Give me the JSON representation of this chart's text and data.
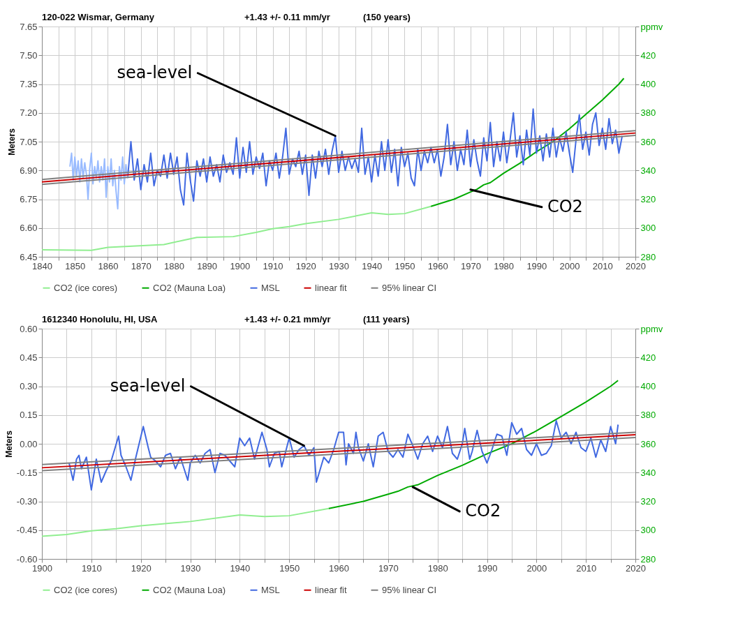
{
  "chart_data": [
    {
      "type": "line",
      "title": "120-022 Wismar, Germany",
      "subtitle": "+1.43 +/- 0.11 mm/yr",
      "ylabel": "Meters",
      "grid": true,
      "legend": "bottom",
      "annotations": [
        "(150 years)",
        {
          "text": "sea-level",
          "x": 1929,
          "y": 7.08
        },
        {
          "text": "CO2",
          "x": 1970,
          "y": 6.8
        }
      ],
      "xlim": [
        1840,
        2020
      ],
      "xticks": [
        1840,
        {
          "value": 1845,
          "label": null
        },
        1850,
        {
          "value": 1855,
          "label": null
        },
        1860,
        {
          "value": 1865,
          "label": null
        },
        1870,
        {
          "value": 1875,
          "label": null
        },
        1880,
        {
          "value": 1885,
          "label": null
        },
        1890,
        {
          "value": 1895,
          "label": null
        },
        1900,
        {
          "value": 1905,
          "label": null
        },
        1910,
        {
          "value": 1915,
          "label": null
        },
        1920,
        {
          "value": 1925,
          "label": null
        },
        1930,
        {
          "value": 1935,
          "label": null
        },
        1940,
        {
          "value": 1945,
          "label": null
        },
        1950,
        {
          "value": 1955,
          "label": null
        },
        1960,
        {
          "value": 1965,
          "label": null
        },
        1970,
        {
          "value": 1975,
          "label": null
        },
        1980,
        {
          "value": 1985,
          "label": null
        },
        1990,
        {
          "value": 1995,
          "label": null
        },
        2000,
        {
          "value": 2005,
          "label": null
        },
        2010,
        {
          "value": 2015,
          "label": null
        },
        2020
      ],
      "ylim": [
        6.45,
        7.65
      ],
      "yticks": [
        6.45,
        {
          "value": 6.6,
          "label": "6.60"
        },
        6.75,
        {
          "value": 6.9,
          "label": "6.90"
        },
        7.05,
        {
          "value": 7.2,
          "label": "7.20"
        },
        7.35,
        {
          "value": 7.5,
          "label": "7.50"
        },
        7.65
      ],
      "y2lim": [
        280,
        440
      ],
      "y2ticks": [
        280,
        300,
        320,
        340,
        360,
        380,
        400,
        420,
        {
          "value": 440,
          "label": "ppmv"
        }
      ],
      "series": [
        {
          "name": "CO2 (ice cores)",
          "axis": "y2",
          "color": "#90ee90",
          "x": [
            1840,
            1855,
            1860,
            1877,
            1883,
            1887,
            1898,
            1905,
            1910,
            1915,
            1920,
            1930,
            1940,
            1945,
            1950,
            1958
          ],
          "values": [
            284.8,
            284.5,
            286.5,
            288.5,
            291.5,
            293.5,
            294,
            297,
            299.5,
            301,
            303,
            306,
            310.5,
            309.5,
            310,
            315
          ]
        },
        {
          "name": "CO2 (Mauna Loa)",
          "axis": "y2",
          "color": "#00aa00",
          "x": [
            1958,
            1965,
            1970,
            1972,
            1974,
            1976,
            1980,
            1985,
            1990,
            1995,
            2000,
            2005,
            2010,
            2015,
            2016.5
          ],
          "values": [
            315,
            320,
            325,
            327,
            330,
            331.5,
            338,
            345,
            353,
            360,
            369,
            379,
            389,
            400,
            404
          ]
        },
        {
          "name": "MSL",
          "color": "#4169e1",
          "x": [
            1866,
            1867,
            1868,
            1869,
            1870,
            1871,
            1872,
            1873,
            1874,
            1875,
            1876,
            1877,
            1878,
            1879,
            1880,
            1881,
            1882,
            1883,
            1884,
            1885,
            1886,
            1887,
            1888,
            1889,
            1890,
            1891,
            1892,
            1893,
            1894,
            1895,
            1896,
            1897,
            1898,
            1899,
            1900,
            1901,
            1902,
            1903,
            1904,
            1905,
            1906,
            1907,
            1908,
            1909,
            1910,
            1911,
            1912,
            1913,
            1914,
            1915,
            1916,
            1917,
            1918,
            1919,
            1920,
            1921,
            1922,
            1923,
            1924,
            1925,
            1926,
            1927,
            1928,
            1929,
            1930,
            1931,
            1932,
            1933,
            1934,
            1935,
            1936,
            1937,
            1938,
            1939,
            1940,
            1941,
            1942,
            1943,
            1944,
            1945,
            1946,
            1947,
            1948,
            1949,
            1950,
            1951,
            1952,
            1953,
            1954,
            1955,
            1956,
            1957,
            1958,
            1959,
            1960,
            1961,
            1962,
            1963,
            1964,
            1965,
            1966,
            1967,
            1968,
            1969,
            1970,
            1971,
            1972,
            1973,
            1974,
            1975,
            1976,
            1977,
            1978,
            1979,
            1980,
            1981,
            1982,
            1983,
            1984,
            1985,
            1986,
            1987,
            1988,
            1989,
            1990,
            1991,
            1992,
            1993,
            1994,
            1995,
            1996,
            1997,
            1998,
            1999,
            2000,
            2001,
            2002,
            2003,
            2004,
            2005,
            2006,
            2007,
            2008,
            2009,
            2010,
            2011,
            2012,
            2013,
            2014,
            2015,
            2016
          ],
          "values": [
            6.86,
            7.05,
            6.85,
            6.96,
            6.8,
            6.93,
            6.84,
            6.99,
            6.82,
            6.9,
            6.87,
            6.98,
            6.86,
            6.99,
            6.88,
            6.97,
            6.8,
            6.72,
            6.99,
            6.85,
            6.74,
            6.95,
            6.87,
            6.96,
            6.84,
            6.97,
            6.87,
            6.93,
            6.84,
            6.98,
            6.89,
            6.94,
            6.88,
            7.07,
            6.86,
            7.02,
            6.89,
            7.05,
            6.88,
            6.97,
            6.91,
            6.99,
            6.82,
            6.95,
            6.9,
            6.99,
            6.86,
            6.97,
            7.12,
            6.88,
            6.96,
            6.92,
            7.0,
            6.88,
            6.98,
            6.77,
            6.98,
            6.86,
            7.0,
            6.92,
            7.01,
            6.88,
            7.0,
            7.08,
            6.89,
            7.0,
            6.9,
            6.97,
            6.91,
            6.96,
            6.89,
            7.12,
            6.88,
            6.97,
            6.84,
            6.98,
            6.87,
            7.05,
            6.9,
            7.06,
            6.89,
            7.01,
            6.82,
            7.02,
            6.92,
            6.99,
            6.86,
            6.82,
            7.01,
            6.9,
            7.0,
            6.94,
            7.02,
            6.94,
            7.01,
            6.87,
            6.97,
            7.14,
            6.93,
            7.05,
            6.9,
            7.01,
            6.93,
            7.11,
            6.92,
            7.06,
            6.95,
            6.87,
            7.07,
            6.95,
            7.15,
            6.92,
            7.05,
            6.95,
            7.1,
            6.94,
            7.06,
            7.2,
            6.97,
            7.08,
            6.93,
            7.11,
            6.98,
            7.22,
            6.99,
            7.08,
            6.95,
            7.09,
            6.97,
            7.12,
            6.97,
            7.07,
            7.0,
            7.1,
            6.99,
            6.89,
            7.06,
            7.19,
            7.01,
            7.1,
            6.98,
            7.14,
            7.2,
            7.03,
            7.12,
            7.01,
            7.17,
            7.04,
            7.11,
            6.99,
            7.08
          ]
        },
        {
          "color": "#99bbff",
          "x": [
            1848.5,
            1849,
            1849.5,
            1850,
            1850.5,
            1851,
            1851.5,
            1852,
            1852.5,
            1853,
            1853.5,
            1854,
            1854.5,
            1855,
            1855.5,
            1856,
            1856.5,
            1857,
            1857.5,
            1858,
            1858.5,
            1859,
            1859.5,
            1860,
            1860.5,
            1861,
            1861.5,
            1862,
            1862.5,
            1863,
            1863.5,
            1864,
            1864.5,
            1865,
            1865.5,
            1866
          ],
          "values": [
            6.92,
            6.99,
            6.85,
            6.97,
            6.87,
            6.95,
            6.84,
            6.96,
            6.86,
            6.94,
            6.88,
            6.75,
            6.91,
            6.99,
            6.83,
            6.92,
            6.86,
            6.95,
            6.84,
            6.92,
            6.85,
            6.96,
            6.76,
            6.92,
            6.84,
            6.96,
            6.82,
            6.9,
            6.79,
            6.7,
            6.92,
            6.85,
            6.97,
            6.83,
            6.93,
            6.86
          ]
        },
        {
          "name": "linear fit",
          "color": "#cc0000",
          "x": [
            1840,
            2020
          ],
          "values": [
            6.84,
            7.095
          ]
        },
        {
          "name": "95% linear CI",
          "color": "#808080",
          "x": [
            1840,
            2020
          ],
          "values": [
            6.853,
            7.107
          ]
        },
        {
          "color": "#808080",
          "x": [
            1840,
            2020
          ],
          "values": [
            6.827,
            7.083
          ]
        }
      ]
    },
    {
      "type": "line",
      "title": "1612340 Honolulu, HI, USA",
      "subtitle": "+1.43 +/- 0.21 mm/yr",
      "ylabel": "Meters",
      "grid": true,
      "legend": "bottom",
      "annotations": [
        "(111 years)",
        {
          "text": "sea-level",
          "x": 1953,
          "y": -0.01
        },
        {
          "text": "CO2",
          "x": 1975,
          "y": -0.225
        }
      ],
      "xlim": [
        1900,
        2020
      ],
      "xticks": [
        1900,
        {
          "value": 1905,
          "label": null
        },
        1910,
        {
          "value": 1915,
          "label": null
        },
        1920,
        {
          "value": 1925,
          "label": null
        },
        1930,
        {
          "value": 1935,
          "label": null
        },
        1940,
        {
          "value": 1945,
          "label": null
        },
        1950,
        {
          "value": 1955,
          "label": null
        },
        1960,
        {
          "value": 1965,
          "label": null
        },
        1970,
        {
          "value": 1975,
          "label": null
        },
        1980,
        {
          "value": 1985,
          "label": null
        },
        1990,
        {
          "value": 1995,
          "label": null
        },
        2000,
        {
          "value": 2005,
          "label": null
        },
        2010,
        {
          "value": 2015,
          "label": null
        },
        2020
      ],
      "ylim": [
        -0.6,
        0.6
      ],
      "yticks": [
        {
          "value": -0.6,
          "label": "-0.60"
        },
        -0.45,
        {
          "value": -0.3,
          "label": "-0.30"
        },
        -0.15,
        {
          "value": 0,
          "label": "0.00"
        },
        0.15,
        {
          "value": 0.3,
          "label": "0.30"
        },
        0.45,
        {
          "value": 0.6,
          "label": "0.60"
        }
      ],
      "y2lim": [
        280,
        440
      ],
      "y2ticks": [
        280,
        300,
        320,
        340,
        360,
        380,
        400,
        420,
        {
          "value": 440,
          "label": "ppmv"
        }
      ],
      "series": [
        {
          "name": "CO2 (ice cores)",
          "axis": "y2",
          "color": "#90ee90",
          "x": [
            1900,
            1905,
            1910,
            1915,
            1920,
            1930,
            1940,
            1945,
            1950,
            1958
          ],
          "values": [
            295.7,
            297,
            299.5,
            301,
            303,
            306,
            310.5,
            309.5,
            310,
            315
          ]
        },
        {
          "name": "CO2 (Mauna Loa)",
          "axis": "y2",
          "color": "#00aa00",
          "x": [
            1958,
            1965,
            1970,
            1972,
            1974,
            1976,
            1980,
            1985,
            1990,
            1995,
            2000,
            2005,
            2010,
            2015,
            2016.5
          ],
          "values": [
            315,
            320,
            325,
            327,
            330,
            331.5,
            338,
            345,
            353,
            360,
            369,
            379,
            389,
            400,
            404
          ]
        },
        {
          "name": "MSL",
          "color": "#4169e1",
          "x": [
            1905.5,
            1906.3,
            1907,
            1907.5,
            1908,
            1909,
            1910,
            1911,
            1912,
            1913,
            1914,
            1915.5,
            1916,
            1917,
            1918,
            1919,
            1920.5,
            1921.5,
            1922,
            1923,
            1924,
            1925,
            1926,
            1927,
            1928,
            1929.5,
            1930,
            1931,
            1932,
            1933,
            1934,
            1935,
            1936,
            1937,
            1938,
            1939,
            1940,
            1941,
            1942,
            1943,
            1944.5,
            1945.5,
            1946,
            1947,
            1948,
            1948.5,
            1950,
            1951,
            1952,
            1953,
            1954,
            1955,
            1955.5,
            1957,
            1958,
            1959,
            1960,
            1961,
            1961.5,
            1962,
            1963,
            1963.5,
            1964,
            1965,
            1966,
            1967,
            1968,
            1969,
            1970,
            1971,
            1972,
            1973,
            1974,
            1975,
            1976,
            1977,
            1978,
            1979,
            1980,
            1981,
            1982,
            1983,
            1984,
            1985,
            1985.5,
            1986.5,
            1987,
            1988,
            1989,
            1990,
            1991,
            1992,
            1993,
            1994,
            1995,
            1996,
            1997,
            1998,
            1999,
            2000,
            2001,
            2002,
            2003,
            2004,
            2005,
            2006,
            2007,
            2008,
            2009,
            2010,
            2011,
            2012,
            2013,
            2014,
            2015,
            2016,
            2016.5
          ],
          "values": [
            -0.1,
            -0.19,
            -0.08,
            -0.06,
            -0.13,
            -0.07,
            -0.24,
            -0.08,
            -0.2,
            -0.14,
            -0.09,
            0.04,
            -0.06,
            -0.12,
            -0.19,
            -0.07,
            0.09,
            -0.02,
            -0.07,
            -0.09,
            -0.12,
            -0.06,
            -0.05,
            -0.13,
            -0.07,
            -0.19,
            -0.1,
            -0.06,
            -0.1,
            -0.05,
            -0.03,
            -0.15,
            -0.05,
            -0.06,
            -0.09,
            -0.12,
            0.03,
            -0.01,
            0.03,
            -0.08,
            0.06,
            -0.03,
            -0.12,
            -0.05,
            -0.04,
            -0.12,
            0.03,
            -0.07,
            -0.03,
            -0.01,
            -0.06,
            -0.02,
            -0.2,
            -0.07,
            -0.1,
            -0.03,
            0.06,
            0.06,
            -0.11,
            0.0,
            -0.05,
            0.06,
            -0.02,
            -0.09,
            0.0,
            -0.12,
            0.04,
            0.06,
            -0.04,
            -0.07,
            -0.03,
            -0.07,
            0.05,
            -0.01,
            -0.08,
            0.0,
            0.04,
            -0.04,
            0.04,
            -0.02,
            0.09,
            -0.05,
            -0.08,
            0.0,
            0.08,
            -0.08,
            -0.04,
            0.07,
            -0.04,
            -0.1,
            -0.03,
            0.05,
            0.04,
            -0.06,
            0.11,
            0.05,
            0.08,
            -0.03,
            -0.06,
            0.0,
            -0.06,
            -0.05,
            -0.01,
            0.12,
            0.03,
            0.06,
            0.0,
            0.06,
            -0.02,
            -0.04,
            0.03,
            -0.07,
            0.02,
            -0.04,
            0.09,
            0.0,
            0.1
          ]
        },
        {
          "name": "linear fit",
          "color": "#cc0000",
          "x": [
            1900,
            2020
          ],
          "values": [
            -0.125,
            0.047
          ]
        },
        {
          "name": "95% linear CI",
          "color": "#808080",
          "x": [
            1900,
            2020
          ],
          "values": [
            -0.108,
            0.06
          ]
        },
        {
          "color": "#808080",
          "x": [
            1900,
            2020
          ],
          "values": [
            -0.14,
            0.033
          ]
        }
      ]
    }
  ]
}
